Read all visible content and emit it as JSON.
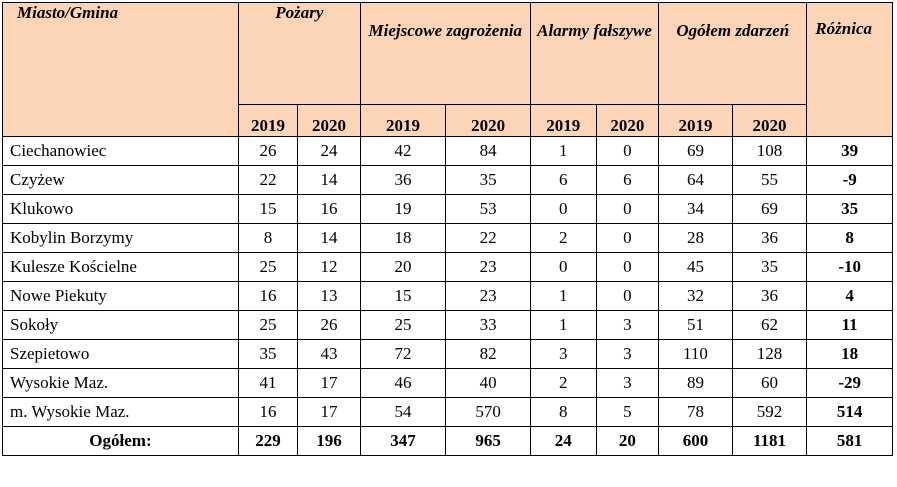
{
  "header": {
    "city": "Miasto/Gmina",
    "pozary": "Pożary",
    "miejscowe": "Miejscowe zagrożenia",
    "alarmy": "Alarmy fałszywe",
    "ogolem": "Ogółem zdarzeń",
    "roznica": "Różnica",
    "years": [
      "2019",
      "2020",
      "2019",
      "2020",
      "2019",
      "2020",
      "2019",
      "2020"
    ]
  },
  "rows": [
    {
      "name": "Ciechanowiec",
      "v": [
        "26",
        "24",
        "42",
        "84",
        "1",
        "0",
        "69",
        "108"
      ],
      "diff": "39"
    },
    {
      "name": "Czyżew",
      "v": [
        "22",
        "14",
        "36",
        "35",
        "6",
        "6",
        "64",
        "55"
      ],
      "diff": "-9"
    },
    {
      "name": "Klukowo",
      "v": [
        "15",
        "16",
        "19",
        "53",
        "0",
        "0",
        "34",
        "69"
      ],
      "diff": "35"
    },
    {
      "name": "Kobylin Borzymy",
      "v": [
        "8",
        "14",
        "18",
        "22",
        "2",
        "0",
        "28",
        "36"
      ],
      "diff": "8"
    },
    {
      "name": "Kulesze Kościelne",
      "v": [
        "25",
        "12",
        "20",
        "23",
        "0",
        "0",
        "45",
        "35"
      ],
      "diff": "-10"
    },
    {
      "name": "Nowe Piekuty",
      "v": [
        "16",
        "13",
        "15",
        "23",
        "1",
        "0",
        "32",
        "36"
      ],
      "diff": "4"
    },
    {
      "name": "Sokoły",
      "v": [
        "25",
        "26",
        "25",
        "33",
        "1",
        "3",
        "51",
        "62"
      ],
      "diff": "11"
    },
    {
      "name": "Szepietowo",
      "v": [
        "35",
        "43",
        "72",
        "82",
        "3",
        "3",
        "110",
        "128"
      ],
      "diff": "18"
    },
    {
      "name": "Wysokie Maz.",
      "v": [
        "41",
        "17",
        "46",
        "40",
        "2",
        "3",
        "89",
        "60"
      ],
      "diff": "-29"
    },
    {
      "name": "m. Wysokie Maz.",
      "v": [
        "16",
        "17",
        "54",
        "570",
        "8",
        "5",
        "78",
        "592"
      ],
      "diff": "514"
    }
  ],
  "total": {
    "name": "Ogółem:",
    "v": [
      "229",
      "196",
      "347",
      "965",
      "24",
      "20",
      "600",
      "1181"
    ],
    "diff": "581"
  },
  "colors": {
    "header_bg": "#fbd5b5",
    "border": "#000000"
  }
}
